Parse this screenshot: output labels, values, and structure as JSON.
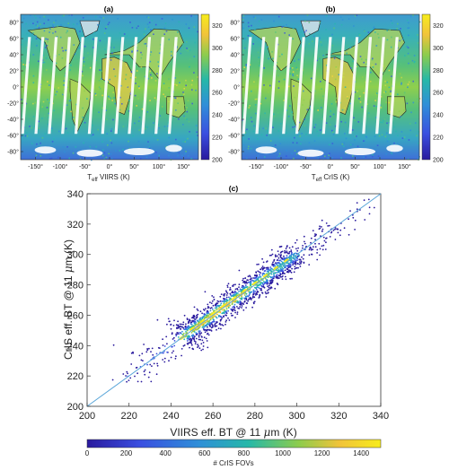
{
  "figure": {
    "panels": [
      {
        "label": "(a)",
        "xlabel_main": "T",
        "xlabel_sub": "eff",
        "xlabel_rest": " VIIRS (K)"
      },
      {
        "label": "(b)",
        "xlabel_main": "T",
        "xlabel_sub": "eff",
        "xlabel_rest": " CrIS (K)"
      },
      {
        "label": "(c)"
      }
    ],
    "map_ticks": {
      "lon": [
        "-150°",
        "-100°",
        "-50°",
        "0°",
        "50°",
        "100°",
        "150°"
      ],
      "lat": [
        "80°",
        "60°",
        "40°",
        "20°",
        "0°",
        "-20°",
        "-40°",
        "-60°",
        "-80°"
      ],
      "colorbar": [
        "320",
        "300",
        "280",
        "260",
        "240",
        "220",
        "200"
      ]
    }
  },
  "colors": {
    "low": "#3b20a8",
    "mid": "#2fb3a5",
    "high": "#f5e61c",
    "line": "#5aa6d9"
  },
  "chart_data": [
    {
      "type": "heatmap",
      "panel": "(a)",
      "description_axes": "longitude vs latitude",
      "xlim": [
        -180,
        180
      ],
      "ylim": [
        -90,
        90
      ],
      "colorbar": {
        "range": [
          200,
          330
        ],
        "ticks": [
          200,
          220,
          240,
          260,
          280,
          300,
          320
        ]
      }
    },
    {
      "type": "heatmap",
      "panel": "(b)",
      "xlim": [
        -180,
        180
      ],
      "ylim": [
        -90,
        90
      ],
      "colorbar": {
        "range": [
          200,
          330
        ],
        "ticks": [
          200,
          220,
          240,
          260,
          280,
          300,
          320
        ]
      }
    },
    {
      "type": "scatter",
      "panel": "(c)",
      "xlabel_a": "VIIRS eff. BT @ 11 ",
      "xlabel_mu": "μ",
      "xlabel_b": "m (K)",
      "ylabel_a": "CrIS eff. BT @ 11 ",
      "ylabel_mu": "μ",
      "ylabel_b": "m (K)",
      "xlim": [
        200,
        340
      ],
      "ylim": [
        200,
        340
      ],
      "xticks": [
        200,
        220,
        240,
        260,
        280,
        300,
        320,
        340
      ],
      "yticks": [
        200,
        220,
        240,
        260,
        280,
        300,
        320,
        340
      ],
      "one_to_one_line": true,
      "density_core": [
        [
          245,
          245
        ],
        [
          250,
          251
        ],
        [
          255,
          256
        ],
        [
          260,
          261
        ],
        [
          265,
          266
        ],
        [
          270,
          271
        ],
        [
          275,
          276
        ],
        [
          280,
          281
        ],
        [
          285,
          286
        ],
        [
          290,
          291
        ],
        [
          295,
          296
        ]
      ],
      "colorbar": {
        "label": "# CrIS FOVs",
        "range": [
          0,
          1500
        ],
        "ticks": [
          0,
          200,
          400,
          600,
          800,
          1000,
          1200,
          1400
        ]
      }
    }
  ]
}
